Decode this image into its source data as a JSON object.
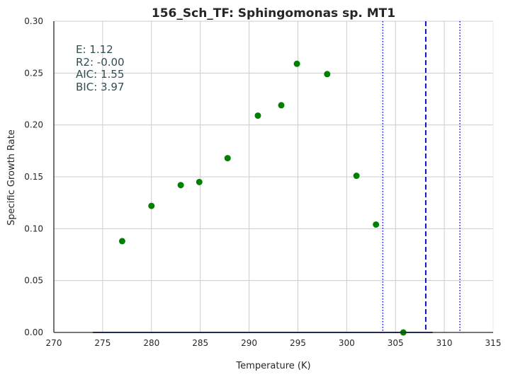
{
  "chart_data": {
    "type": "scatter",
    "title": "156_Sch_TF: Sphingomonas sp. MT1",
    "xlabel": "Temperature (K)",
    "ylabel": "Specific Growth Rate",
    "xlim": [
      270,
      315
    ],
    "ylim": [
      0,
      0.3
    ],
    "x_ticks": [
      "270",
      "275",
      "280",
      "285",
      "290",
      "295",
      "300",
      "305",
      "310",
      "315"
    ],
    "y_ticks": [
      "0.00",
      "0.05",
      "0.10",
      "0.15",
      "0.20",
      "0.25",
      "0.30"
    ],
    "grid": true,
    "legend": "none",
    "series": [
      {
        "x": [
          277.0,
          280.0,
          283.0,
          284.9,
          287.8,
          290.9,
          293.3,
          294.9,
          298.0,
          301.0,
          303.0,
          305.8
        ],
        "y": [
          0.088,
          0.122,
          0.142,
          0.145,
          0.168,
          0.209,
          0.219,
          0.259,
          0.249,
          0.151,
          0.104,
          0.0
        ],
        "color": "#008000"
      },
      {
        "x": [
          274.0,
          308.8
        ],
        "y": [
          0.0,
          0.0
        ],
        "style": "line",
        "color": "#2035a0"
      }
    ],
    "vlines": [
      {
        "x": 303.7,
        "style": "dotted",
        "color": "#1010cc"
      },
      {
        "x": 308.1,
        "style": "dashed",
        "color": "#1010cc"
      },
      {
        "x": 311.6,
        "style": "dotted",
        "color": "#1010cc"
      }
    ],
    "annotations": [
      "E:  1.12",
      "R2:  -0.00",
      "AIC: 1.55",
      "BIC: 3.97"
    ]
  }
}
